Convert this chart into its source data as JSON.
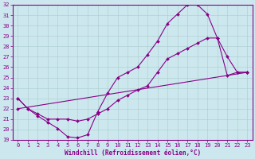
{
  "xlabel": "Windchill (Refroidissement éolien,°C)",
  "xlim": [
    -0.5,
    23.5
  ],
  "ylim": [
    19,
    32
  ],
  "xticks": [
    0,
    1,
    2,
    3,
    4,
    5,
    6,
    7,
    8,
    9,
    10,
    11,
    12,
    13,
    14,
    15,
    16,
    17,
    18,
    19,
    20,
    21,
    22,
    23
  ],
  "yticks": [
    19,
    20,
    21,
    22,
    23,
    24,
    25,
    26,
    27,
    28,
    29,
    30,
    31,
    32
  ],
  "bg_color": "#cce8ee",
  "line_color": "#880088",
  "grid_color": "#aacccc",
  "series1": {
    "x": [
      0,
      1,
      2,
      3,
      4,
      5,
      6,
      7,
      8,
      9,
      10,
      11,
      12,
      13,
      14,
      15,
      16,
      17,
      18,
      19,
      20,
      21,
      22,
      23
    ],
    "y": [
      23.0,
      22.0,
      21.3,
      20.7,
      20.1,
      19.3,
      19.2,
      19.5,
      21.7,
      23.5,
      25.0,
      25.5,
      26.0,
      27.2,
      28.5,
      30.2,
      31.1,
      32.0,
      32.0,
      31.1,
      28.8,
      25.2,
      25.5,
      25.5
    ]
  },
  "series2": {
    "x": [
      0,
      1,
      2,
      3,
      4,
      5,
      6,
      7,
      8,
      9,
      10,
      11,
      12,
      13,
      14,
      15,
      16,
      17,
      18,
      19,
      20,
      21,
      22,
      23
    ],
    "y": [
      23.0,
      22.0,
      21.5,
      21.0,
      21.0,
      21.0,
      20.8,
      21.0,
      21.5,
      22.0,
      22.8,
      23.3,
      23.8,
      24.2,
      25.5,
      26.8,
      27.3,
      27.8,
      28.3,
      28.8,
      28.8,
      27.0,
      25.5,
      25.5
    ]
  },
  "series3": {
    "x": [
      0,
      23
    ],
    "y": [
      22.0,
      25.5
    ]
  },
  "marker": "D",
  "markersize": 2.0,
  "linewidth": 0.8,
  "tick_fontsize": 5,
  "xlabel_fontsize": 5.5
}
